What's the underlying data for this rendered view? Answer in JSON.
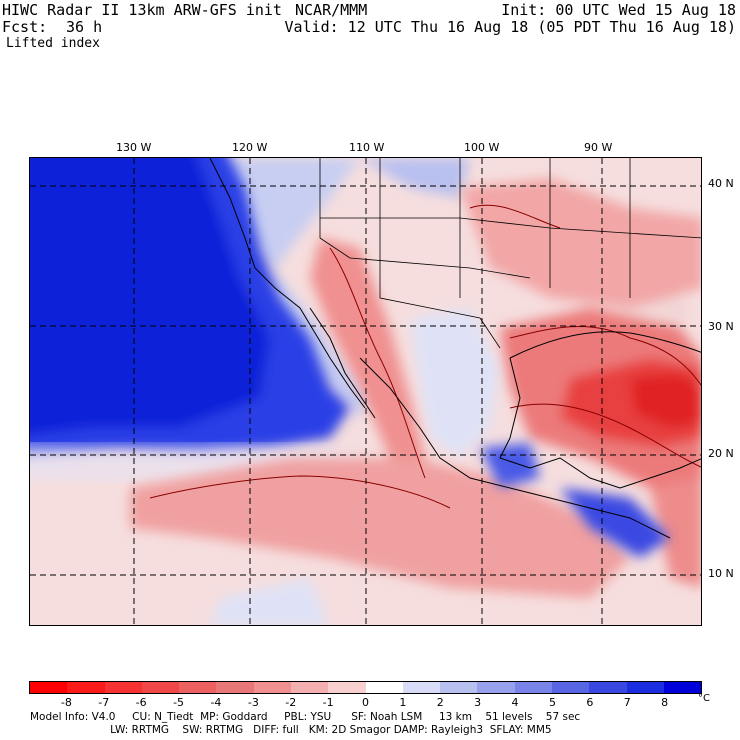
{
  "header": {
    "model_title": "HIWC Radar II 13km ARW-GFS init",
    "org": "NCAR/MMM",
    "forecast_label": "Fcst:",
    "forecast_hours": "36 h",
    "field_name": "Lifted index",
    "init_time": "Init: 00 UTC Wed 15 Aug 18",
    "valid_time": "Valid: 12 UTC Thu 16 Aug 18 (05 PDT Thu 16 Aug 18)"
  },
  "map": {
    "lon_labels": [
      "130 W",
      "120 W",
      "110 W",
      "100 W",
      "90 W"
    ],
    "lat_labels": [
      "40 N",
      "30 N",
      "20 N",
      "10 N"
    ],
    "region": "Eastern Pacific, western United States, Mexico, Gulf of Mexico",
    "colors": {
      "ocean_stable": "#1a2ee0",
      "stable_light": "#b8c0f0",
      "neutral": "#f6dede",
      "unstable_mid": "#f08080",
      "unstable_strong": "#e83030",
      "grid": "#000000"
    }
  },
  "colorbar": {
    "labels": [
      "-8",
      "-7",
      "-6",
      "-5",
      "-4",
      "-3",
      "-2",
      "-1",
      "0",
      "1",
      "2",
      "3",
      "4",
      "5",
      "6",
      "7",
      "8"
    ],
    "unit": "°C",
    "colors": [
      "#ff0000",
      "#fb1a1a",
      "#f63232",
      "#f04848",
      "#ec6060",
      "#e87878",
      "#f09090",
      "#f4b0b0",
      "#f8d0d0",
      "#ffffff",
      "#d8dcf6",
      "#b8c0f0",
      "#98a2ec",
      "#7884e8",
      "#5866e4",
      "#3848e0",
      "#1a2ee0",
      "#0000d8"
    ]
  },
  "footer": {
    "line1": "Model Info: V4.0     CU: N_Tiedt  MP: Goddard     PBL: YSU      SF: Noah LSM     13 km    51 levels    57 sec",
    "line2": "                        LW: RRTMG    SW: RRTMG   DIFF: full   KM: 2D Smagor DAMP: Rayleigh3  SFLAY: MM5"
  }
}
